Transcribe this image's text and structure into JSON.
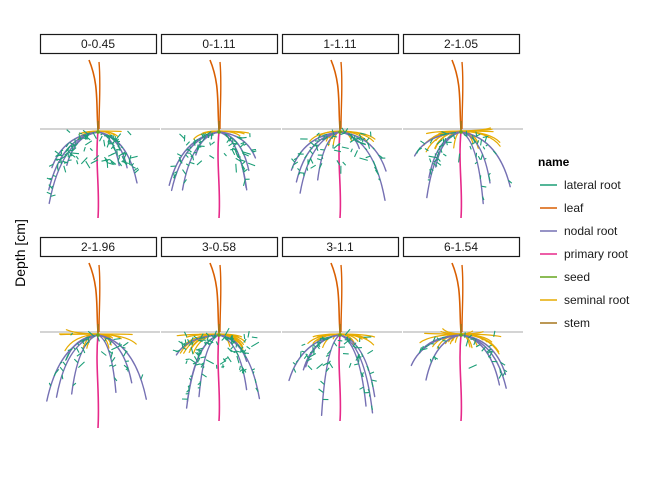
{
  "chart_data": {
    "type": "faceted-root-architecture",
    "ylabel": "Depth [cm]",
    "legend": {
      "title": "name",
      "placement": "right",
      "entries": [
        {
          "label": "lateral root",
          "color": "#1b9e77"
        },
        {
          "label": "leaf",
          "color": "#d95f02"
        },
        {
          "label": "nodal root",
          "color": "#7570b3"
        },
        {
          "label": "primary root",
          "color": "#e7298a"
        },
        {
          "label": "seed",
          "color": "#66a61e"
        },
        {
          "label": "seminal root",
          "color": "#e6ab02"
        },
        {
          "label": "stem",
          "color": "#a6761d"
        }
      ]
    },
    "ground_line_color": "#bbbbbb",
    "grid": false,
    "facets": [
      {
        "label": "0-0.45",
        "lateral": 1.0,
        "nodal": 0.75,
        "seminal": 0.2
      },
      {
        "label": "0-1.11",
        "lateral": 0.55,
        "nodal": 0.9,
        "seminal": 0.25
      },
      {
        "label": "1-1.11",
        "lateral": 0.55,
        "nodal": 0.75,
        "seminal": 0.5
      },
      {
        "label": "2-1.05",
        "lateral": 0.35,
        "nodal": 0.75,
        "seminal": 0.8
      },
      {
        "label": "2-1.96",
        "lateral": 0.25,
        "nodal": 0.7,
        "seminal": 0.75
      },
      {
        "label": "3-0.58",
        "lateral": 0.9,
        "nodal": 0.8,
        "seminal": 0.7
      },
      {
        "label": "3-1.1",
        "lateral": 0.5,
        "nodal": 0.85,
        "seminal": 0.6
      },
      {
        "label": "6-1.54",
        "lateral": 0.2,
        "nodal": 0.4,
        "seminal": 1.0
      }
    ]
  }
}
